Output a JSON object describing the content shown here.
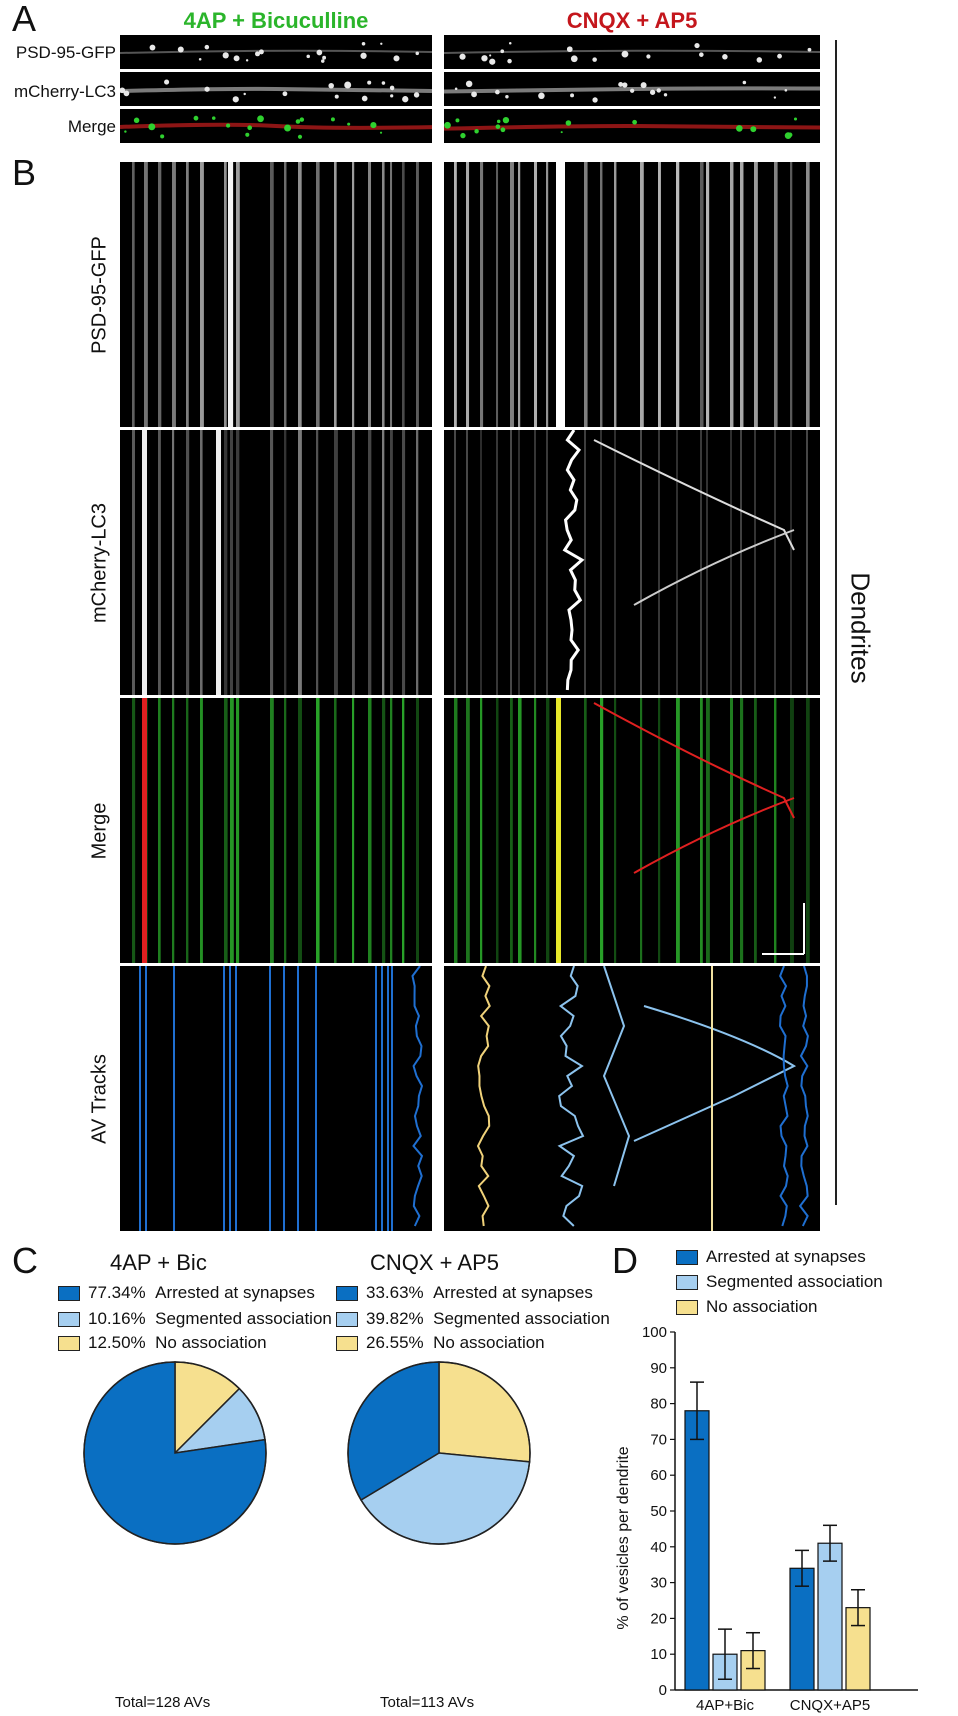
{
  "figure": {
    "panels": {
      "a": "A",
      "b": "B",
      "c": "C",
      "d": "D"
    },
    "conditions": {
      "left": "4AP + Bicuculline",
      "right": "CNQX + AP5"
    },
    "panel_a_rows": [
      "PSD-95-GFP",
      "mCherry-LC3",
      "Merge"
    ],
    "panel_b_rows": [
      "PSD-95-GFP",
      "mCherry-LC3",
      "Merge",
      "AV Tracks"
    ],
    "side_label": "Dendrites",
    "colors": {
      "arrested": "#0a6fc2",
      "segmented": "#a6cff0",
      "none": "#f6e08f",
      "green_title": "#2bb52b",
      "red_title": "#c4161c"
    }
  },
  "panel_c": {
    "left": {
      "title": "4AP + Bic",
      "legend": [
        {
          "pct": "77.34%",
          "label": "Arrested at synapses",
          "color": "#0a6fc2"
        },
        {
          "pct": "10.16%",
          "label": "Segmented association",
          "color": "#a6cff0"
        },
        {
          "pct": "12.50%",
          "label": "No association",
          "color": "#f6e08f"
        }
      ],
      "total": "Total=128 AVs"
    },
    "right": {
      "title": "CNQX + AP5",
      "legend": [
        {
          "pct": "33.63%",
          "label": "Arrested at synapses",
          "color": "#0a6fc2"
        },
        {
          "pct": "39.82%",
          "label": "Segmented association",
          "color": "#a6cff0"
        },
        {
          "pct": "26.55%",
          "label": "No association",
          "color": "#f6e08f"
        }
      ],
      "total": "Total=113 AVs"
    }
  },
  "panel_d": {
    "legend": [
      "Arrested at synapses",
      "Segmented association",
      "No association"
    ]
  },
  "chart_data": [
    {
      "type": "pie",
      "title": "4AP + Bic",
      "categories": [
        "Arrested at synapses",
        "Segmented association",
        "No association"
      ],
      "values": [
        77.34,
        10.16,
        12.5
      ],
      "colors": [
        "#0a6fc2",
        "#a6cff0",
        "#f6e08f"
      ],
      "note": "Total=128 AVs"
    },
    {
      "type": "pie",
      "title": "CNQX + AP5",
      "categories": [
        "Arrested at synapses",
        "Segmented association",
        "No association"
      ],
      "values": [
        33.63,
        39.82,
        26.55
      ],
      "colors": [
        "#0a6fc2",
        "#a6cff0",
        "#f6e08f"
      ],
      "note": "Total=113 AVs"
    },
    {
      "type": "bar",
      "title": "",
      "categories": [
        "4AP+Bic",
        "CNQX+AP5"
      ],
      "series": [
        {
          "name": "Arrested at synapses",
          "values": [
            78,
            34
          ],
          "errors": [
            8,
            5
          ],
          "color": "#0a6fc2"
        },
        {
          "name": "Segmented association",
          "values": [
            10,
            41
          ],
          "errors": [
            7,
            5
          ],
          "color": "#a6cff0"
        },
        {
          "name": "No association",
          "values": [
            11,
            23
          ],
          "errors": [
            5,
            5
          ],
          "color": "#f6e08f"
        }
      ],
      "xlabel": "",
      "ylabel": "% of vesicles per dendrite",
      "ylim": [
        0,
        100
      ],
      "yticks": [
        "0",
        "10",
        "20",
        "30",
        "40",
        "50",
        "60",
        "70",
        "80",
        "90",
        "100"
      ],
      "legend_position": "top"
    }
  ]
}
